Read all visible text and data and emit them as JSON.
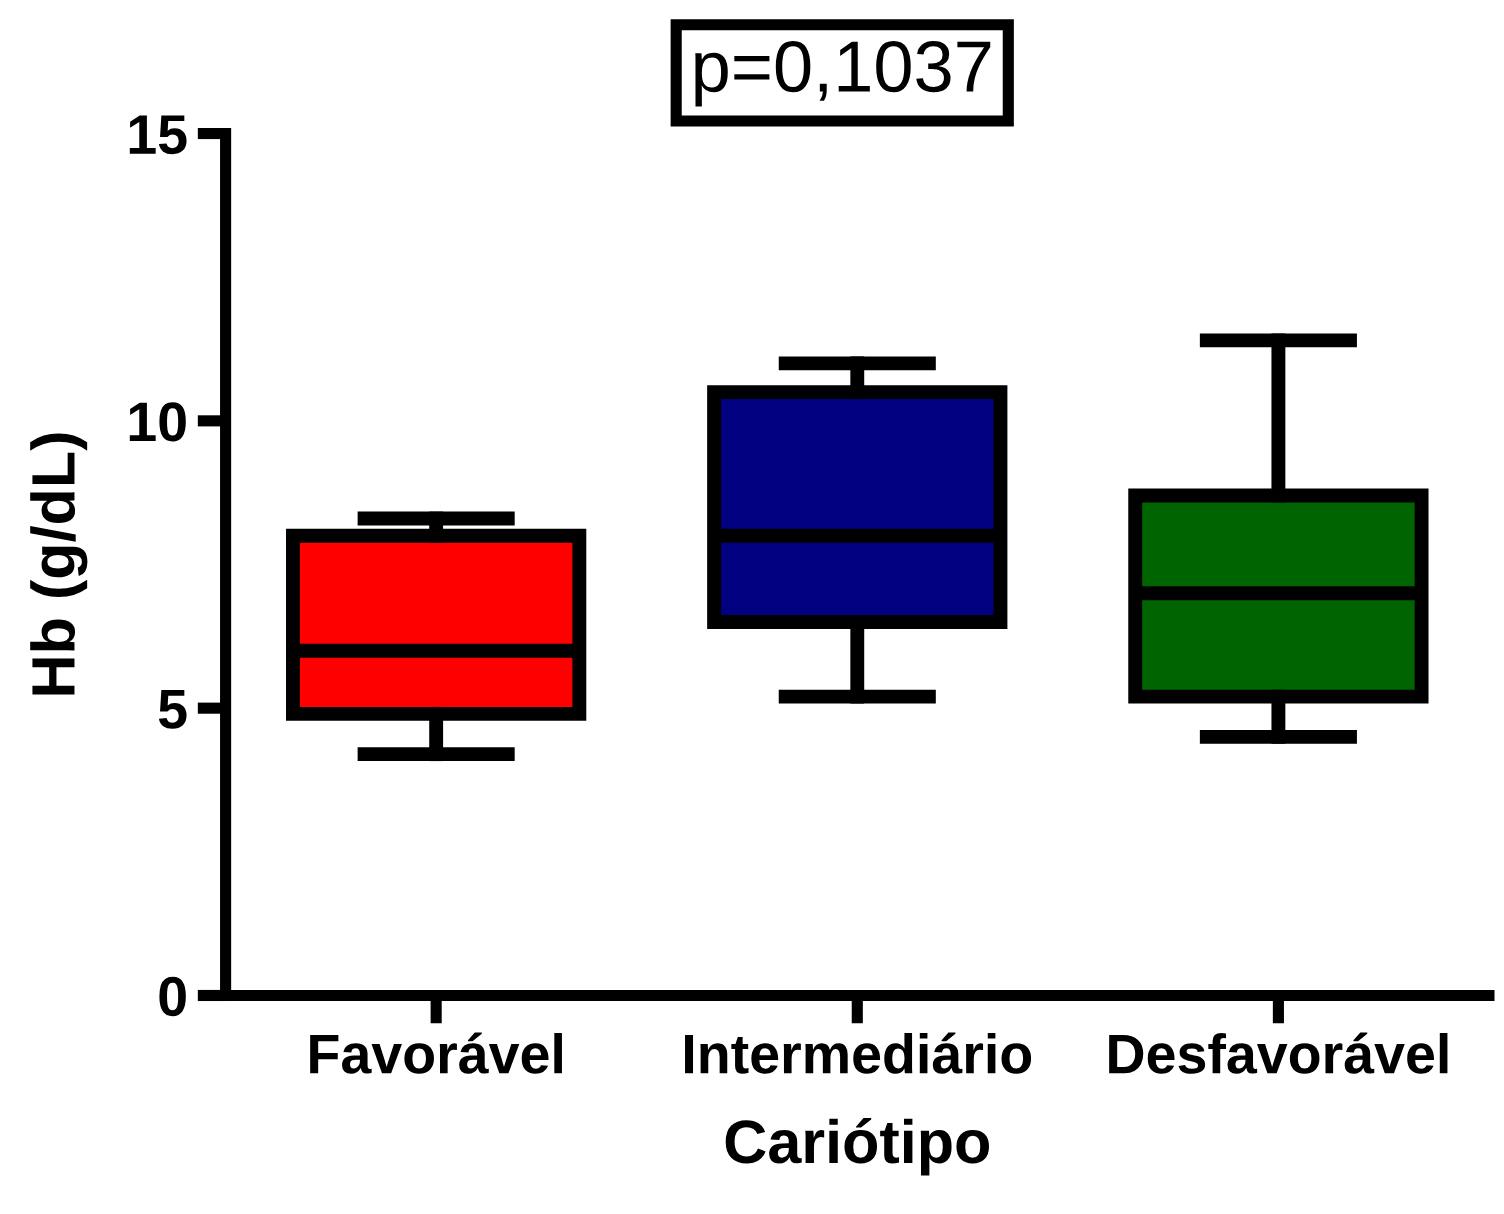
{
  "chart_data": {
    "type": "box",
    "xlabel": "Cariótipo",
    "ylabel": "Hb (g/dL)",
    "annotations": [
      "p=0,1037"
    ],
    "categories": [
      "Favorável",
      "Intermediário",
      "Desfavorável"
    ],
    "colors": [
      "#ff0000",
      "#000080",
      "#006400"
    ],
    "boxes": [
      {
        "low": 4.2,
        "q1": 4.9,
        "median": 6.0,
        "q3": 8.0,
        "high": 8.3
      },
      {
        "low": 5.2,
        "q1": 6.5,
        "median": 8.0,
        "q3": 10.5,
        "high": 11.0
      },
      {
        "low": 4.5,
        "q1": 5.2,
        "median": 7.0,
        "q3": 8.7,
        "high": 11.4
      }
    ],
    "ylim": [
      0,
      15
    ],
    "yticks": [
      0,
      5,
      10,
      15
    ],
    "grid": false
  }
}
